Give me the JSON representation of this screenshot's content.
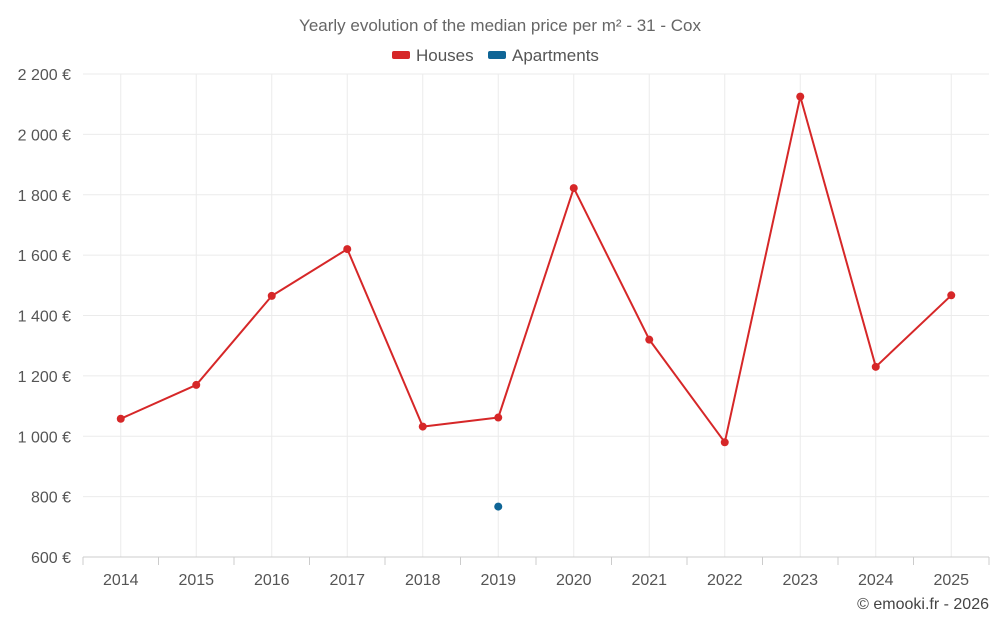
{
  "chart_data": {
    "type": "line",
    "title": "Yearly evolution of the median price per m² - 31 - Cox",
    "categories": [
      "2014",
      "2015",
      "2016",
      "2017",
      "2018",
      "2019",
      "2020",
      "2021",
      "2022",
      "2023",
      "2024",
      "2025"
    ],
    "series": [
      {
        "name": "Houses",
        "color": "#d62728",
        "values": [
          1058,
          1170,
          1465,
          1620,
          1032,
          1062,
          1822,
          1320,
          980,
          2125,
          1230,
          1467
        ]
      },
      {
        "name": "Apartments",
        "color": "#0f6596",
        "values": [
          null,
          null,
          null,
          null,
          null,
          767,
          null,
          null,
          null,
          null,
          null,
          null
        ]
      }
    ],
    "y_ticks": [
      600,
      800,
      1000,
      1200,
      1400,
      1600,
      1800,
      2000,
      2200
    ],
    "y_tick_labels": [
      "600 €",
      "800 €",
      "1 000 €",
      "1 200 €",
      "1 400 €",
      "1 600 €",
      "1 800 €",
      "2 000 €",
      "2 200 €"
    ],
    "ylim": [
      600,
      2200
    ],
    "xlabel": "",
    "ylabel": "",
    "grid": true,
    "legend": "top-center"
  },
  "credit": "© emooki.fr - 2026"
}
